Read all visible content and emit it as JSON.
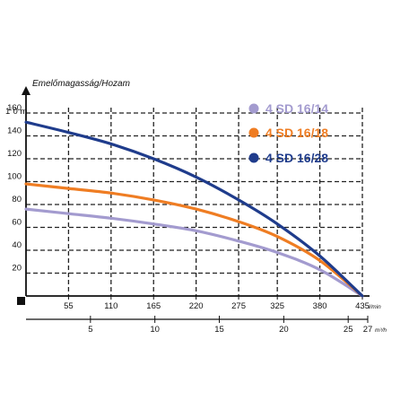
{
  "chart_data": {
    "type": "line",
    "title": "Emelőmagasság/Hozam",
    "y_unit_label": "1˙0 m",
    "x_unit_label": "l/min",
    "x2_unit_label": "m³/h",
    "xlim": [
      0,
      435
    ],
    "ylim": [
      0,
      160
    ],
    "x_ticks": [
      55,
      110,
      165,
      220,
      275,
      325,
      380,
      435
    ],
    "x2_ticks": [
      5,
      10,
      15,
      20,
      25,
      27
    ],
    "y_ticks": [
      20,
      40,
      60,
      80,
      100,
      120,
      140,
      160
    ],
    "grid": true,
    "legend_position": "top-right",
    "series": [
      {
        "name": "4 SD 16/14",
        "color": "#a39bcf",
        "x": [
          0,
          55,
          110,
          165,
          220,
          275,
          325,
          380,
          435
        ],
        "y": [
          76,
          72,
          68,
          63,
          57,
          48,
          38,
          23,
          0
        ]
      },
      {
        "name": "4 SD 16/18",
        "color": "#ef7d23",
        "x": [
          0,
          55,
          110,
          165,
          220,
          275,
          325,
          380,
          435
        ],
        "y": [
          98,
          94,
          90,
          84,
          76,
          65,
          52,
          31,
          0
        ]
      },
      {
        "name": "4 SD 16/28",
        "color": "#1f3c8c",
        "x": [
          0,
          55,
          110,
          165,
          220,
          275,
          325,
          380,
          435
        ],
        "y": [
          152,
          143,
          133,
          120,
          104,
          84,
          63,
          35,
          0
        ]
      }
    ]
  }
}
